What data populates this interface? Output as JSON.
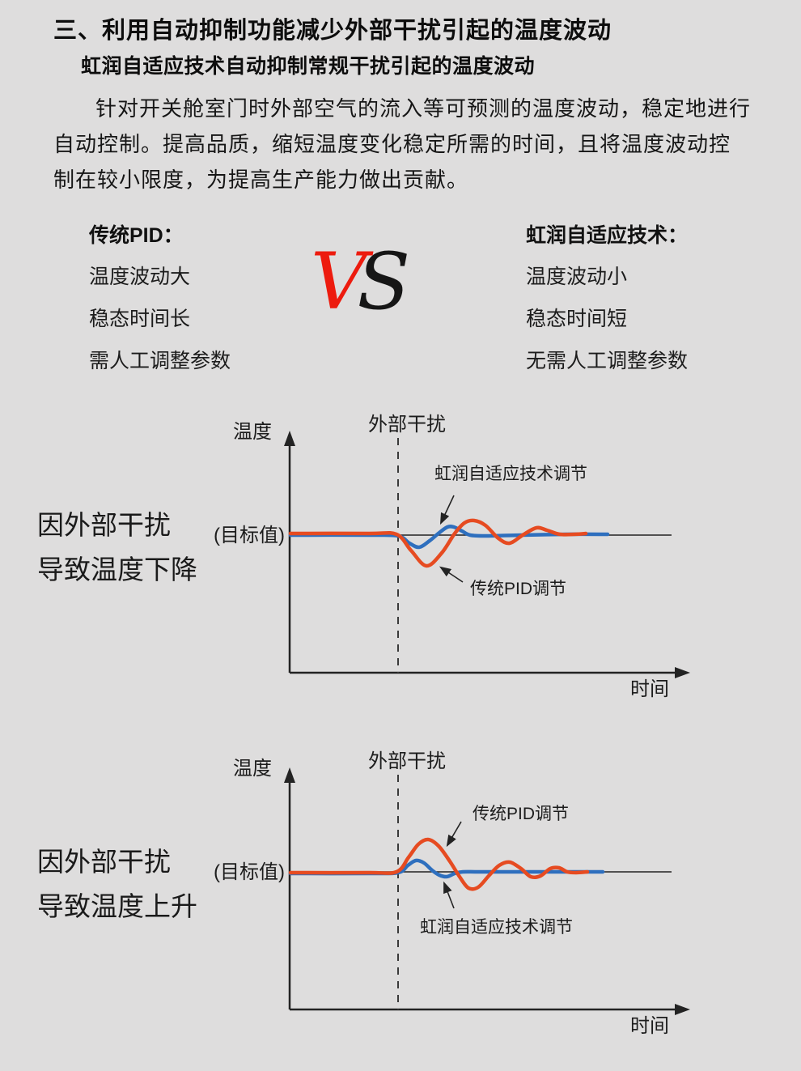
{
  "page": {
    "bg_color": "#dedddd",
    "title": "三、利用自动抑制功能减少外部干扰引起的温度波动",
    "subtitle": "虹润自适应技术自动抑制常规干扰引起的温度波动",
    "paragraph_lines": [
      "针对开关舱室门时外部空气的流入等可预测的温度波动，稳定地进行",
      "自动控制。提高品质，缩短温度变化稳定所需的时间，且将温度波动控",
      "制在较小限度，为提高生产能力做出贡献。"
    ]
  },
  "comparison": {
    "left": {
      "header": "传统PID：",
      "items": [
        "温度波动大",
        "稳态时间长",
        "需人工调整参数"
      ]
    },
    "vs": {
      "v": "V",
      "s": "S",
      "v_color": "#ed1b0e",
      "s_color": "#161616"
    },
    "right": {
      "header": "虹润自适应技术：",
      "items": [
        "温度波动小",
        "稳态时间短",
        "无需人工调整参数"
      ]
    }
  },
  "chart_data": [
    {
      "type": "line",
      "id": "disturbance-temperature-drop",
      "side_label_lines": [
        "因外部干扰",
        "导致温度下降"
      ],
      "ylabel": "温度",
      "xlabel": "时间",
      "target_label": "(目标值)",
      "disturbance_label": "外部干扰",
      "legend_position": "inline-annotations",
      "axis_note": "qualitative axes, no numeric ticks; points are page-pixel coords, target value = y 166",
      "series": [
        {
          "name": "虹润自适应技术调节",
          "color": "#2e6fbe",
          "points": [
            [
              359,
              166
            ],
            [
              455,
              166
            ],
            [
              492,
              167
            ],
            [
              506,
              176
            ],
            [
              518,
              181
            ],
            [
              531,
              173
            ],
            [
              543,
              163
            ],
            [
              553,
              156
            ],
            [
              561,
              156
            ],
            [
              571,
              161
            ],
            [
              581,
              166
            ],
            [
              600,
              167
            ],
            [
              645,
              166
            ],
            [
              700,
              165
            ],
            [
              751,
              165
            ]
          ]
        },
        {
          "name": "传统PID调节",
          "color": "#e64b21",
          "points": [
            [
              359,
              164
            ],
            [
              455,
              164
            ],
            [
              490,
              165
            ],
            [
              508,
              185
            ],
            [
              527,
              204
            ],
            [
              546,
              188
            ],
            [
              562,
              164
            ],
            [
              574,
              151
            ],
            [
              586,
              148
            ],
            [
              600,
              154
            ],
            [
              616,
              170
            ],
            [
              630,
              176
            ],
            [
              646,
              166
            ],
            [
              663,
              157
            ],
            [
              676,
              160
            ],
            [
              692,
              165
            ],
            [
              710,
              165
            ],
            [
              724,
              164
            ]
          ]
        }
      ]
    },
    {
      "type": "line",
      "id": "disturbance-temperature-rise",
      "side_label_lines": [
        "因外部干扰",
        "导致温度上升"
      ],
      "ylabel": "温度",
      "xlabel": "时间",
      "target_label": "(目标值)",
      "disturbance_label": "外部干扰",
      "legend_position": "inline-annotations",
      "axis_note": "qualitative axes, no numeric ticks; points are page-pixel coords, target value = y 166",
      "series": [
        {
          "name": "虹润自适应技术调节",
          "color": "#2e6fbe",
          "points": [
            [
              359,
              168
            ],
            [
              455,
              168
            ],
            [
              492,
              167
            ],
            [
              504,
              158
            ],
            [
              514,
              152
            ],
            [
              524,
              155
            ],
            [
              534,
              164
            ],
            [
              543,
              170
            ],
            [
              552,
              172
            ],
            [
              562,
              168
            ],
            [
              572,
              166
            ],
            [
              592,
              166
            ],
            [
              640,
              166
            ],
            [
              700,
              166
            ],
            [
              745,
              166
            ]
          ]
        },
        {
          "name": "传统PID调节",
          "color": "#e64b21",
          "points": [
            [
              359,
              167
            ],
            [
              455,
              167
            ],
            [
              490,
              166
            ],
            [
              505,
              148
            ],
            [
              517,
              132
            ],
            [
              529,
              126
            ],
            [
              542,
              134
            ],
            [
              556,
              153
            ],
            [
              568,
              172
            ],
            [
              579,
              186
            ],
            [
              591,
              185
            ],
            [
              604,
              171
            ],
            [
              617,
              158
            ],
            [
              630,
              154
            ],
            [
              644,
              162
            ],
            [
              656,
              172
            ],
            [
              668,
              171
            ],
            [
              680,
              162
            ],
            [
              691,
              161
            ],
            [
              701,
              166
            ],
            [
              712,
              167
            ],
            [
              726,
              166
            ]
          ]
        }
      ]
    }
  ]
}
